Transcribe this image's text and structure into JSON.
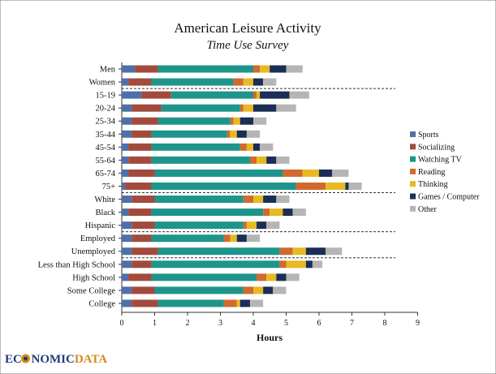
{
  "brand": {
    "part1": "EC",
    "part2": "NOMIC",
    "part3": "DATA"
  },
  "chart_data": {
    "type": "bar",
    "orientation": "horizontal",
    "stacked": true,
    "title": "American Leisure Activity",
    "subtitle": "Time Use Survey",
    "xlabel": "Hours",
    "ylabel": "",
    "xlim": [
      0,
      9
    ],
    "xticks": [
      0,
      1,
      2,
      3,
      4,
      5,
      6,
      7,
      8,
      9
    ],
    "grid": false,
    "legend_position": "right",
    "categories": [
      "Men",
      "Women",
      "15-19",
      "20-24",
      "25-34",
      "35-44",
      "45-54",
      "55-64",
      "65-74",
      "75+",
      "White",
      "Black",
      "Hispanic",
      "Employed",
      "Unemployed",
      "Less than High School",
      "High School",
      "Some College",
      "College"
    ],
    "group_separators_after": [
      "Women",
      "75+",
      "Hispanic",
      "Unemployed"
    ],
    "series": [
      {
        "name": "Sports",
        "color": "#4f6fa8",
        "values": [
          0.4,
          0.2,
          0.6,
          0.3,
          0.3,
          0.3,
          0.2,
          0.2,
          0.2,
          0.1,
          0.3,
          0.2,
          0.3,
          0.3,
          0.3,
          0.3,
          0.2,
          0.3,
          0.3
        ]
      },
      {
        "name": "Socializing",
        "color": "#a24a3c",
        "values": [
          0.7,
          0.7,
          0.9,
          0.9,
          0.8,
          0.6,
          0.7,
          0.7,
          0.8,
          0.8,
          0.7,
          0.7,
          0.7,
          0.6,
          0.8,
          0.6,
          0.7,
          0.7,
          0.8
        ]
      },
      {
        "name": "Watching TV",
        "color": "#1e958a",
        "values": [
          2.9,
          2.5,
          2.5,
          2.4,
          2.2,
          2.3,
          2.7,
          3.0,
          3.9,
          4.4,
          2.7,
          3.4,
          2.7,
          2.2,
          3.7,
          3.9,
          3.2,
          2.7,
          2.0
        ]
      },
      {
        "name": "Reading",
        "color": "#d06a2d",
        "values": [
          0.2,
          0.3,
          0.1,
          0.1,
          0.1,
          0.1,
          0.2,
          0.2,
          0.6,
          0.9,
          0.3,
          0.2,
          0.1,
          0.2,
          0.4,
          0.2,
          0.3,
          0.3,
          0.4
        ]
      },
      {
        "name": "Thinking",
        "color": "#e8b923",
        "values": [
          0.3,
          0.3,
          0.1,
          0.3,
          0.2,
          0.2,
          0.2,
          0.3,
          0.5,
          0.6,
          0.3,
          0.4,
          0.3,
          0.2,
          0.4,
          0.6,
          0.3,
          0.3,
          0.1
        ]
      },
      {
        "name": "Games / Computer",
        "color": "#1b2e55",
        "values": [
          0.5,
          0.3,
          0.9,
          0.7,
          0.4,
          0.3,
          0.2,
          0.3,
          0.4,
          0.1,
          0.4,
          0.3,
          0.3,
          0.3,
          0.6,
          0.2,
          0.3,
          0.3,
          0.3
        ]
      },
      {
        "name": "Other",
        "color": "#b5b5b5",
        "values": [
          0.5,
          0.4,
          0.6,
          0.6,
          0.4,
          0.4,
          0.4,
          0.4,
          0.5,
          0.4,
          0.4,
          0.4,
          0.4,
          0.4,
          0.5,
          0.3,
          0.4,
          0.4,
          0.4
        ]
      }
    ]
  }
}
